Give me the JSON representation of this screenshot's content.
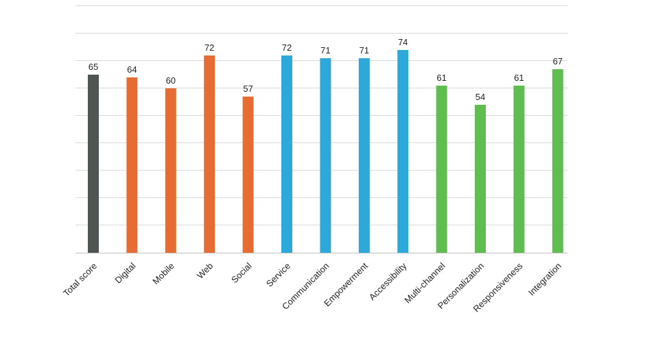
{
  "chart_data": {
    "type": "bar",
    "categories": [
      "Total score",
      "Digital",
      "Mobile",
      "Web",
      "Social",
      "Service",
      "Communication",
      "Empowerment",
      "Accessibility",
      "Multi-channel",
      "Personalization",
      "Responsiveness",
      "Integration"
    ],
    "values": [
      65,
      64,
      60,
      72,
      57,
      72,
      71,
      71,
      74,
      61,
      54,
      61,
      67
    ],
    "colors": [
      "#4f5550",
      "#e56d34",
      "#e56d34",
      "#e56d34",
      "#e56d34",
      "#2ea7d9",
      "#2ea7d9",
      "#2ea7d9",
      "#2ea7d9",
      "#5fbe4f",
      "#5fbe4f",
      "#5fbe4f",
      "#5fbe4f"
    ],
    "ylim": [
      0,
      100
    ],
    "grid": true,
    "gridline_count": 10,
    "title": "",
    "xlabel": "",
    "ylabel": ""
  }
}
